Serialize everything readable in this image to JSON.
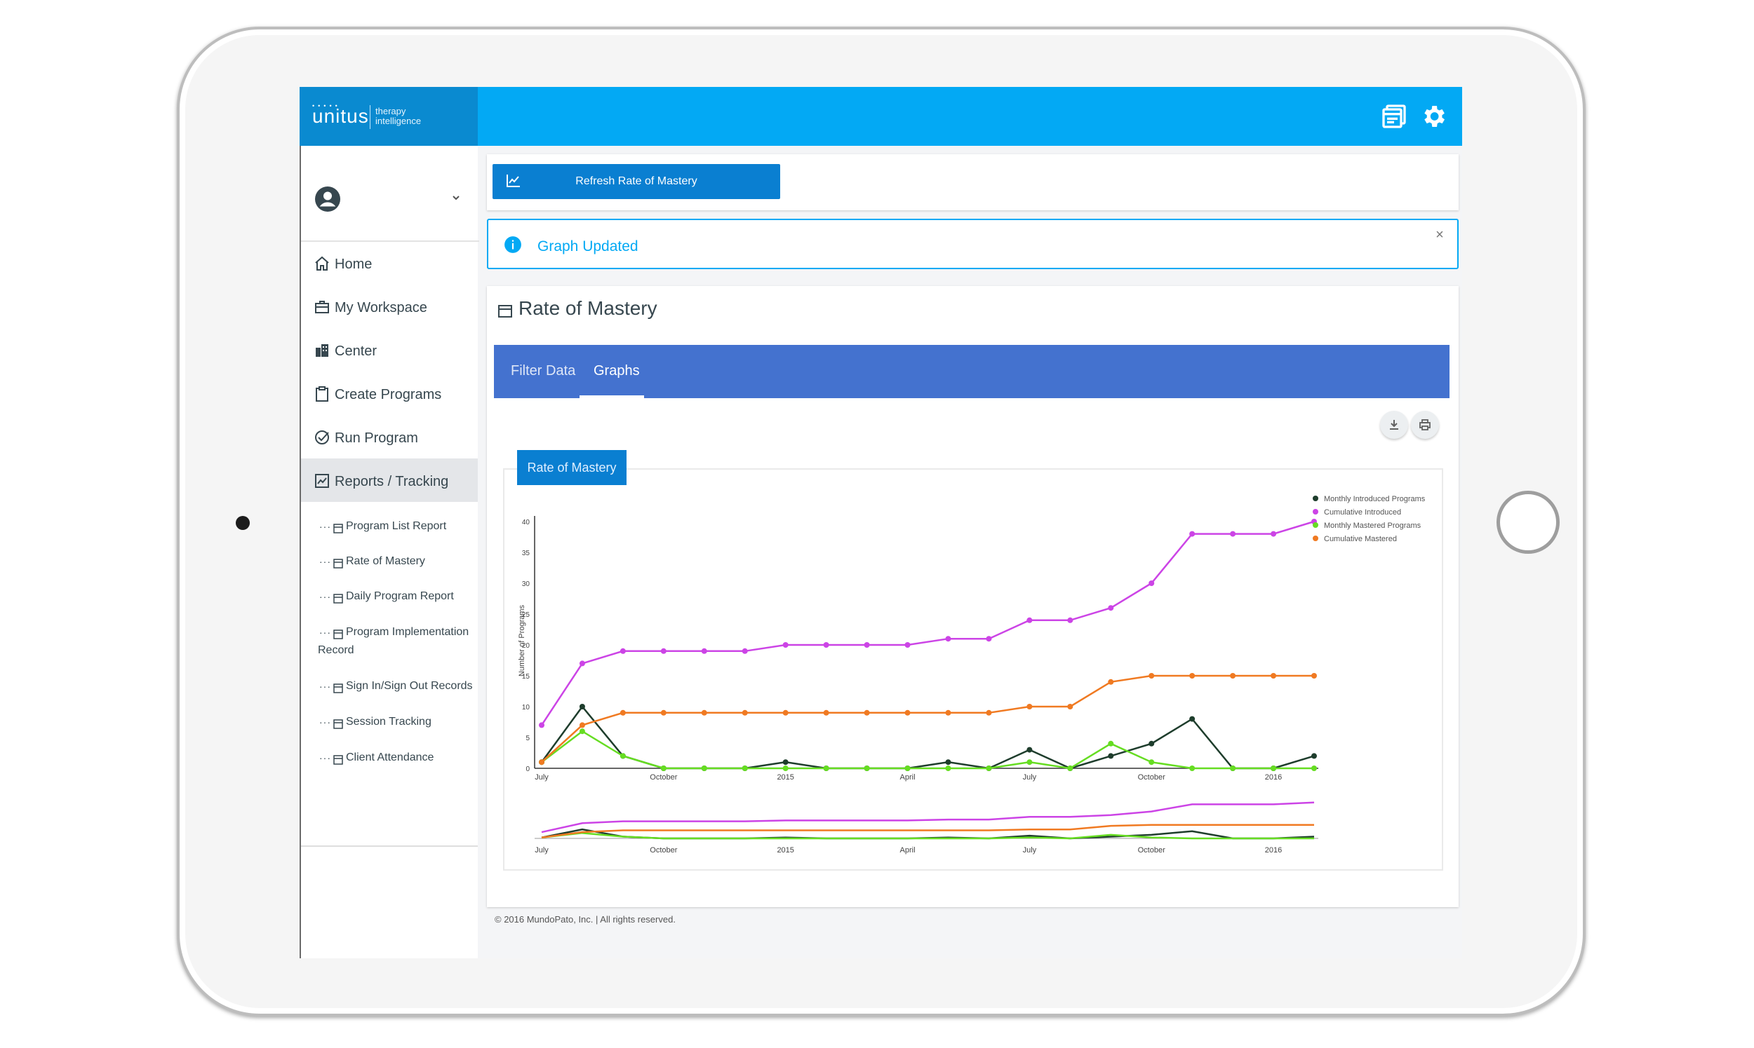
{
  "app": {
    "logo_text": "unitus",
    "logo_subtitle_line1": "therapy",
    "logo_subtitle_line2": "intelligence"
  },
  "topbar": {
    "icons": [
      "window-stack-icon",
      "gear-icon"
    ]
  },
  "sidebar": {
    "nav": [
      {
        "label": "Home",
        "icon": "home-icon"
      },
      {
        "label": "My Workspace",
        "icon": "briefcase-icon"
      },
      {
        "label": "Center",
        "icon": "building-icon"
      },
      {
        "label": "Create Programs",
        "icon": "clipboard-icon"
      },
      {
        "label": "Run Program",
        "icon": "check-circle-icon"
      },
      {
        "label": "Reports / Tracking",
        "icon": "line-chart-icon",
        "active": true
      }
    ],
    "sub": [
      {
        "label": "Program List Report"
      },
      {
        "label": "Rate of Mastery"
      },
      {
        "label": "Daily Program Report"
      },
      {
        "label": "Program Implementation",
        "label2": "Record"
      },
      {
        "label": "Sign In/Sign Out Records"
      },
      {
        "label": "Session Tracking"
      },
      {
        "label": "Client Attendance"
      }
    ]
  },
  "main": {
    "refresh_label": "Refresh Rate of Mastery",
    "alert_text": "Graph Updated",
    "alert_close": "×",
    "section_title": "Rate of Mastery",
    "tabs": [
      {
        "label": "Filter Data"
      },
      {
        "label": "Graphs",
        "active": true
      }
    ],
    "chart_tab_label": "Rate of Mastery",
    "footer": "© 2016 MundoPato, Inc. | All rights reserved."
  },
  "chart_data": {
    "type": "line",
    "title": "",
    "xlabel": "",
    "ylabel": "Number of Programs",
    "ylim": [
      0,
      40
    ],
    "yticks": [
      0,
      5,
      10,
      15,
      20,
      25,
      30,
      35,
      40
    ],
    "x_tick_labels": [
      "July",
      "October",
      "2015",
      "April",
      "July",
      "October",
      "2016"
    ],
    "legend_position": "top-right",
    "series": [
      {
        "name": "Monthly Introduced Programs",
        "color": "#1e3d2c",
        "values": [
          1,
          10,
          2,
          0,
          0,
          0,
          1,
          0,
          0,
          0,
          1,
          0,
          3,
          0,
          2,
          4,
          8,
          0,
          0,
          2
        ]
      },
      {
        "name": "Cumulative Introduced",
        "color": "#cc44e6",
        "values": [
          7,
          17,
          19,
          19,
          19,
          19,
          20,
          20,
          20,
          20,
          21,
          21,
          24,
          24,
          26,
          30,
          38,
          38,
          38,
          40
        ]
      },
      {
        "name": "Monthly Mastered Programs",
        "color": "#66dd22",
        "values": [
          1,
          6,
          2,
          0,
          0,
          0,
          0,
          0,
          0,
          0,
          0,
          0,
          1,
          0,
          4,
          1,
          0,
          0,
          0,
          0
        ]
      },
      {
        "name": "Cumulative Mastered",
        "color": "#f07a22",
        "values": [
          1,
          7,
          9,
          9,
          9,
          9,
          9,
          9,
          9,
          9,
          9,
          9,
          10,
          10,
          14,
          15,
          15,
          15,
          15,
          15
        ]
      }
    ]
  }
}
